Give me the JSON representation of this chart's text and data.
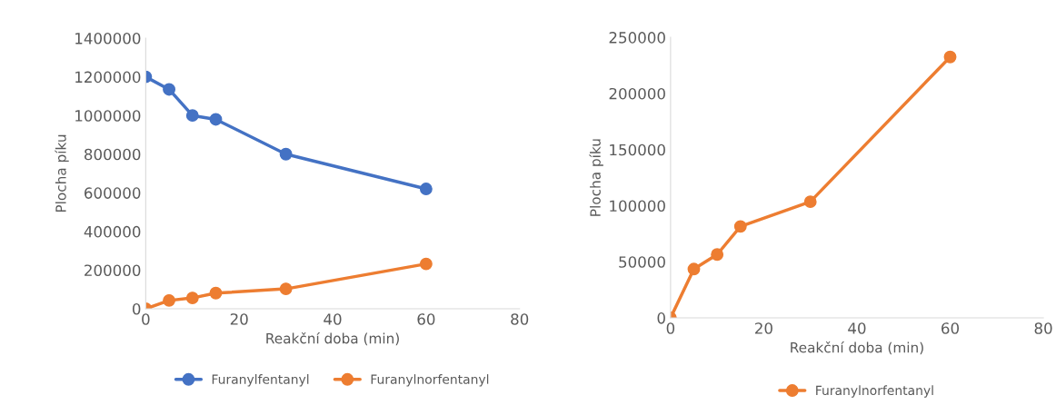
{
  "chart_data": [
    {
      "type": "line",
      "xlabel": "Reakční doba (min)",
      "ylabel": "Plocha píku",
      "xlim": [
        0,
        80
      ],
      "xticks": [
        0,
        20,
        40,
        60,
        80
      ],
      "ylim": [
        0,
        1400000
      ],
      "yticks": [
        0,
        200000,
        400000,
        600000,
        800000,
        1000000,
        1200000,
        1400000
      ],
      "marker": "circle",
      "legend": "bottom",
      "grid": false,
      "series": [
        {
          "name": "Furanylfentanyl",
          "color": "#4472c4",
          "x": [
            0,
            5,
            10,
            15,
            30,
            60
          ],
          "values": [
            1200000,
            1135000,
            1000000,
            980000,
            800000,
            620000
          ]
        },
        {
          "name": "Furanylnorfentanyl",
          "color": "#ed7d31",
          "x": [
            0,
            5,
            10,
            15,
            30,
            60
          ],
          "values": [
            0,
            43000,
            56000,
            81000,
            103000,
            232000
          ]
        }
      ]
    },
    {
      "type": "line",
      "xlabel": "Reakční doba (min)",
      "ylabel": "Plocha píku",
      "xlim": [
        0,
        80
      ],
      "xticks": [
        0,
        20,
        40,
        60,
        80
      ],
      "ylim": [
        0,
        250000
      ],
      "yticks": [
        0,
        50000,
        100000,
        150000,
        200000,
        250000
      ],
      "marker": "circle",
      "legend": "bottom",
      "grid": false,
      "series": [
        {
          "name": "Furanylnorfentanyl",
          "color": "#ed7d31",
          "x": [
            0,
            5,
            10,
            15,
            30,
            60
          ],
          "values": [
            0,
            43500,
            56500,
            81500,
            103500,
            232500
          ]
        }
      ]
    }
  ]
}
